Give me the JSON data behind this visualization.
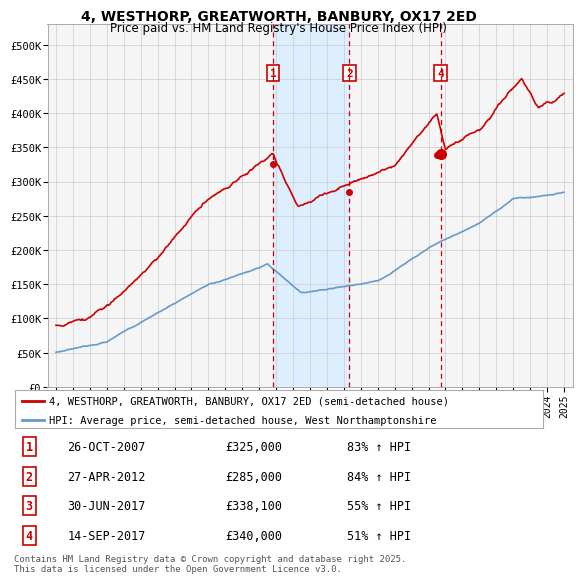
{
  "title": "4, WESTHORP, GREATWORTH, BANBURY, OX17 2ED",
  "subtitle": "Price paid vs. HM Land Registry's House Price Index (HPI)",
  "legend_line1": "4, WESTHORP, GREATWORTH, BANBURY, OX17 2ED (semi-detached house)",
  "legend_line2": "HPI: Average price, semi-detached house, West Northamptonshire",
  "footer": "Contains HM Land Registry data © Crown copyright and database right 2025.\nThis data is licensed under the Open Government Licence v3.0.",
  "transactions": [
    {
      "num": 1,
      "date": "26-OCT-2007",
      "price": 325000,
      "pct": "83%",
      "dir": "↑"
    },
    {
      "num": 2,
      "date": "27-APR-2012",
      "price": 285000,
      "pct": "84%",
      "dir": "↑"
    },
    {
      "num": 3,
      "date": "30-JUN-2017",
      "price": 338100,
      "pct": "55%",
      "dir": "↑"
    },
    {
      "num": 4,
      "date": "14-SEP-2017",
      "price": 340000,
      "pct": "51%",
      "dir": "↑"
    }
  ],
  "transaction_years": [
    2007.82,
    2012.33,
    2017.49,
    2017.71
  ],
  "shade_x1": 2007.82,
  "shade_x2": 2012.33,
  "ylim": [
    0,
    530000
  ],
  "xlim": [
    1994.5,
    2025.5
  ],
  "yticks": [
    0,
    50000,
    100000,
    150000,
    200000,
    250000,
    300000,
    350000,
    400000,
    450000,
    500000
  ],
  "ytick_labels": [
    "£0",
    "£50K",
    "£100K",
    "£150K",
    "£200K",
    "£250K",
    "£300K",
    "£350K",
    "£400K",
    "£450K",
    "£500K"
  ],
  "red_color": "#cc0000",
  "blue_color": "#6699cc",
  "shade_color": "#ddeeff",
  "grid_color": "#cccccc",
  "bg_color": "#f5f5f5"
}
